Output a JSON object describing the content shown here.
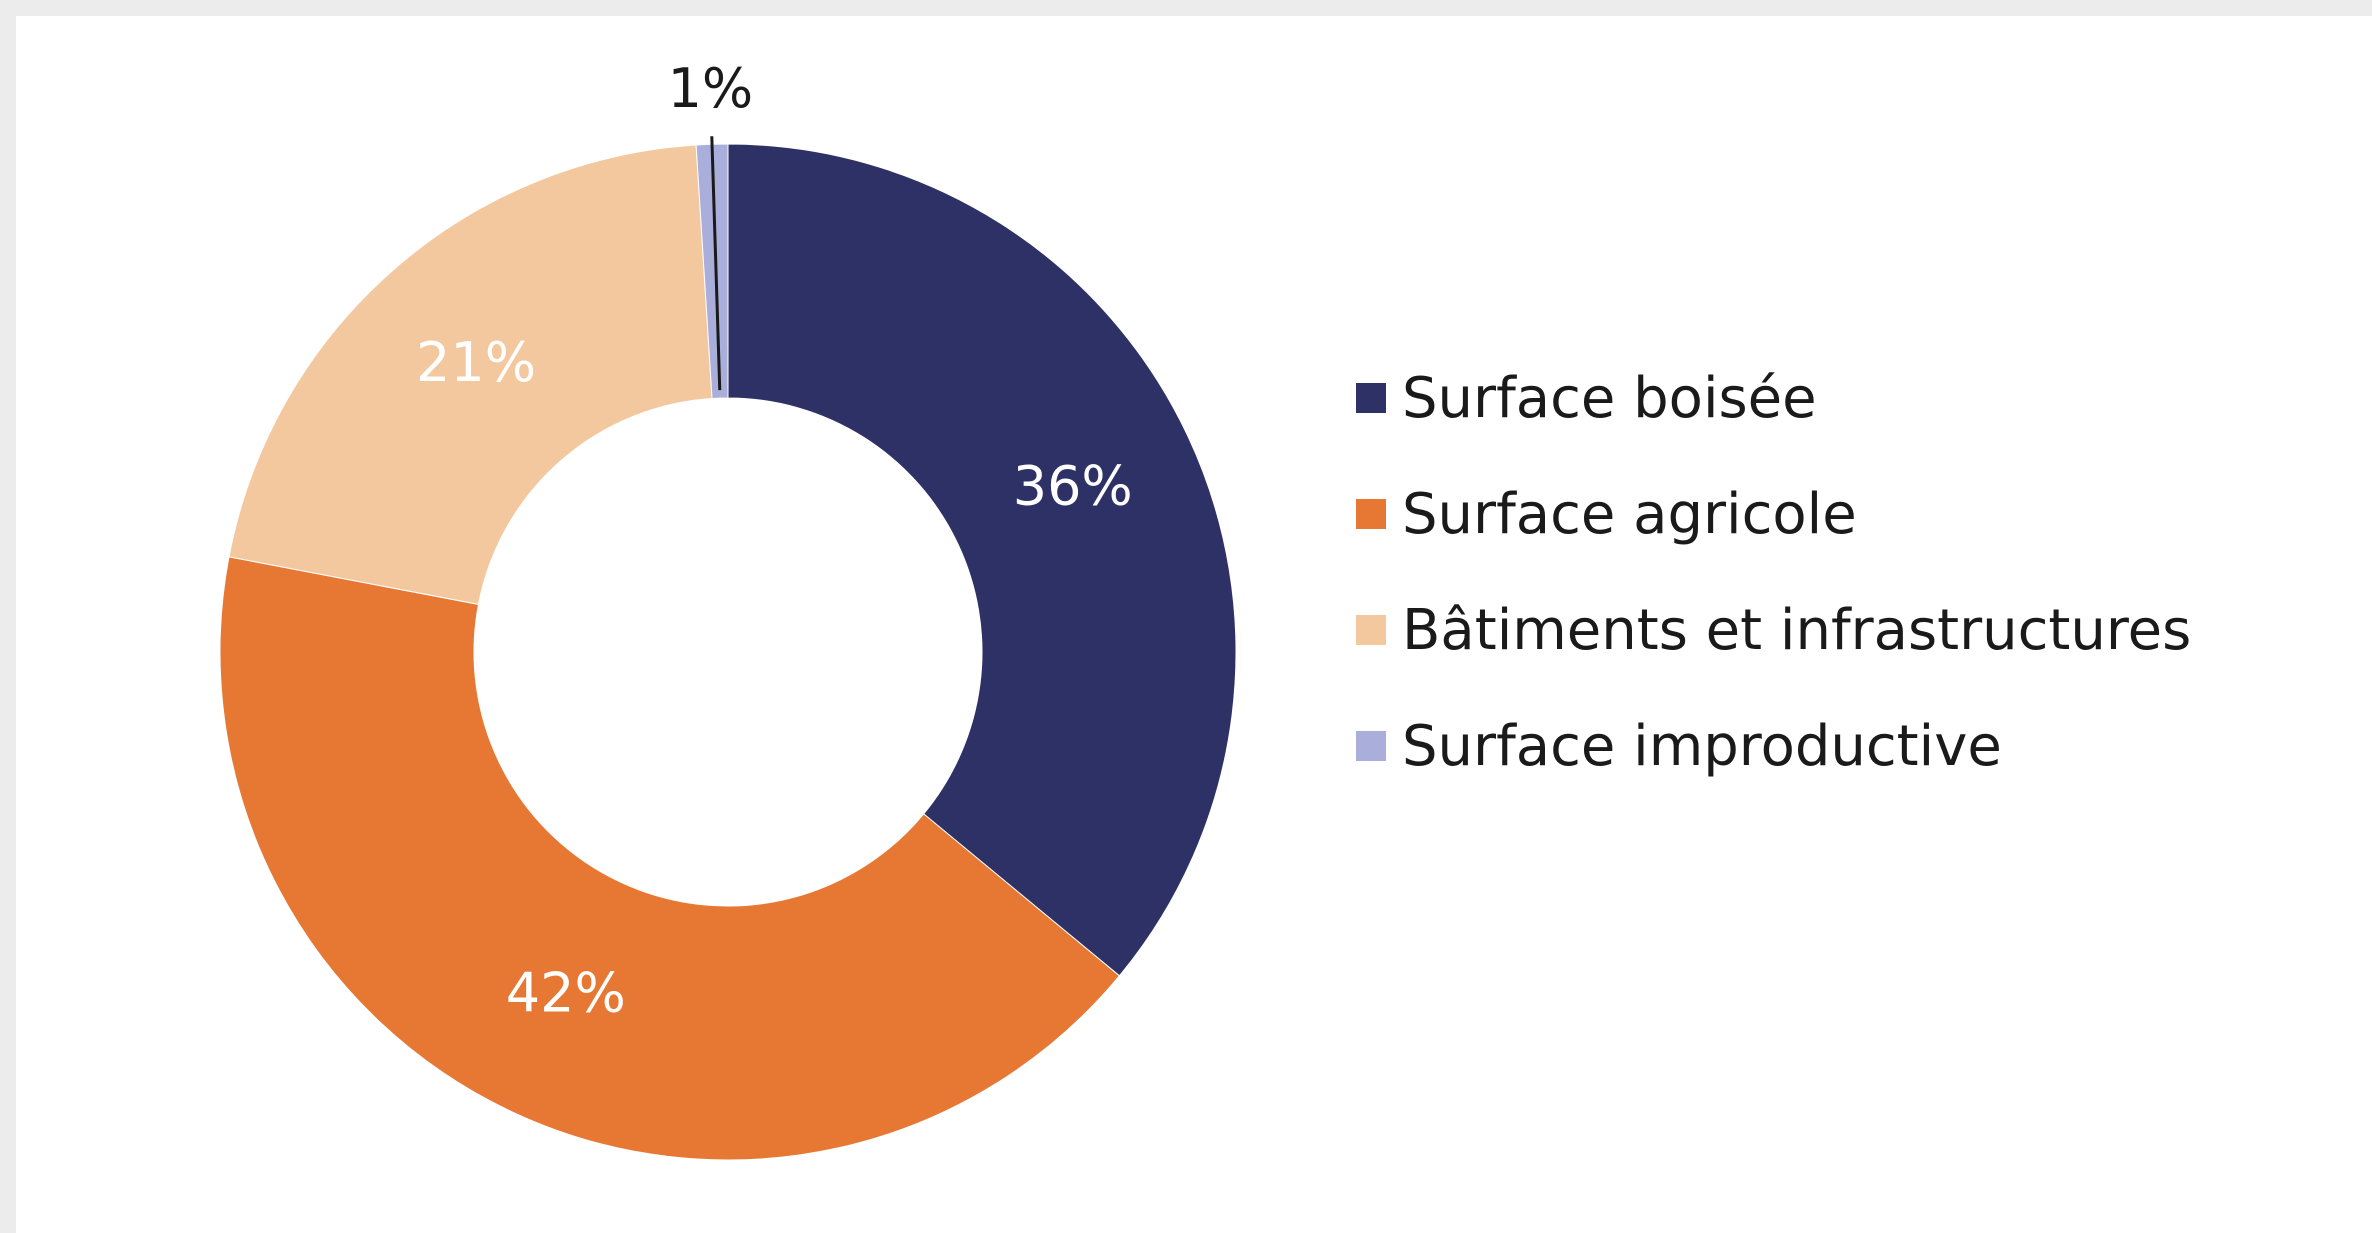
{
  "chart_data": {
    "type": "pie",
    "donut": true,
    "title": "",
    "categories": [
      "Surface boisée",
      "Surface agricole",
      "Bâtiments et infrastructures",
      "Surface improductive"
    ],
    "values": [
      36,
      42,
      21,
      1
    ],
    "unit": "%",
    "value_labels": [
      "36%",
      "42%",
      "21%",
      "1%"
    ],
    "colors": [
      "#2e3166",
      "#e67833",
      "#f4c89e",
      "#a9aedb"
    ],
    "label_colors": [
      "#ffffff",
      "#ffffff",
      "#ffffff",
      "#1a1a1a"
    ],
    "legend_position": "right",
    "slice_order": "clockwise-from-top"
  }
}
